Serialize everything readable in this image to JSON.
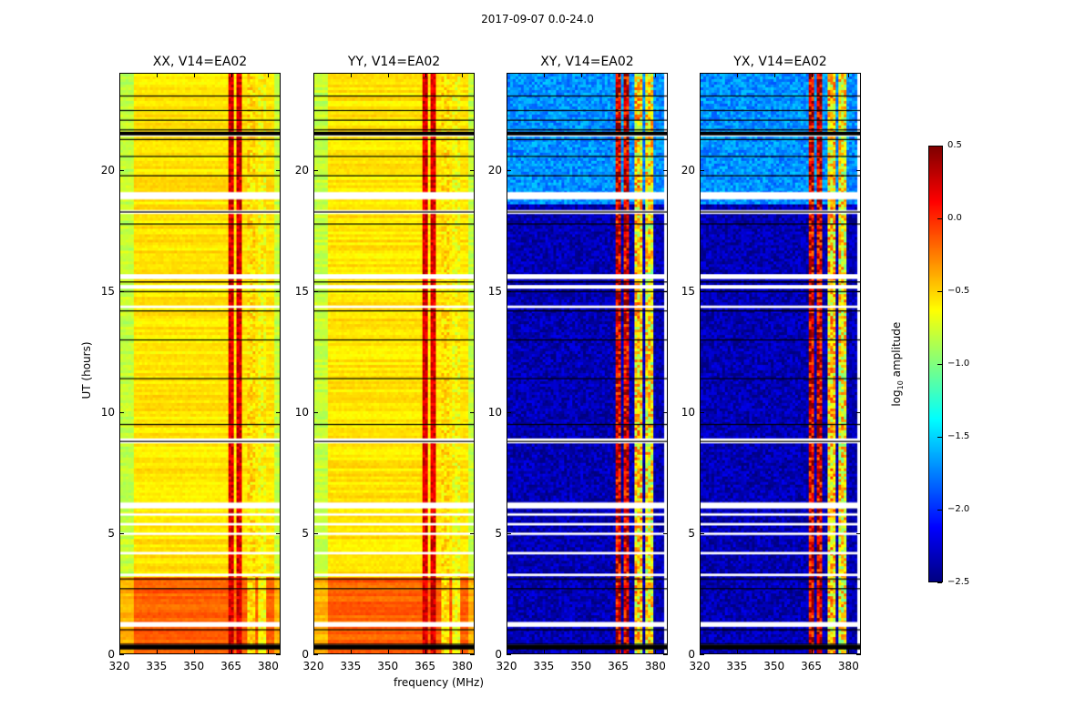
{
  "suptitle": "2017-09-07 0.0-24.0",
  "chart_data": {
    "type": "heatmap",
    "panels": [
      {
        "title": "XX, V14=EA02",
        "kind": "parallel"
      },
      {
        "title": "YY, V14=EA02",
        "kind": "parallel"
      },
      {
        "title": "XY, V14=EA02",
        "kind": "cross"
      },
      {
        "title": "YX, V14=EA02",
        "kind": "cross"
      }
    ],
    "xlabel": "frequency (MHz)",
    "ylabel": "UT (hours)",
    "xlim": [
      320,
      385
    ],
    "ylim": [
      0,
      24
    ],
    "xticks": [
      "320",
      "335",
      "350",
      "365",
      "380"
    ],
    "xtick_values": [
      320,
      335,
      350,
      365,
      380
    ],
    "yticks": [
      "0",
      "5",
      "10",
      "15",
      "20"
    ],
    "ytick_values": [
      0,
      5,
      10,
      15,
      20
    ],
    "colorbar": {
      "label": "log10 amplitude",
      "label_main": "log",
      "label_sub": "10",
      "label_rest": " amplitude",
      "range": [
        -2.5,
        0.5
      ],
      "ticks": [
        "0.5",
        "0.0",
        "−0.5",
        "−1.0",
        "−1.5",
        "−2.0",
        "−2.5"
      ],
      "tick_values": [
        0.5,
        0,
        -0.5,
        -1,
        -1.5,
        -2,
        -2.5
      ],
      "colormap": "jet"
    },
    "features": {
      "parallel_base": -0.55,
      "parallel_low_hours": [
        0,
        3.2
      ],
      "parallel_low_value": -0.15,
      "cross_base": -2.35,
      "cross_upper_hours": [
        18.6,
        24
      ],
      "cross_upper_value": -1.7,
      "bright_channels_mhz": [
        [
          363,
          366,
          0.15
        ],
        [
          366.5,
          369.5,
          0.15
        ],
        [
          371.5,
          375,
          -0.6
        ],
        [
          376,
          379,
          -0.7
        ]
      ],
      "flagged_hours": [
        [
          0.2,
          0.35
        ],
        [
          1.1,
          1.3
        ],
        [
          3.2,
          3.3
        ],
        [
          4.1,
          4.2
        ],
        [
          4.9,
          5.0
        ],
        [
          5.3,
          5.4
        ],
        [
          5.7,
          5.8
        ],
        [
          6.0,
          6.25
        ],
        [
          8.7,
          8.9
        ],
        [
          14.3,
          14.4
        ],
        [
          15.1,
          15.25
        ],
        [
          15.5,
          15.7
        ],
        [
          18.2,
          18.35
        ],
        [
          18.8,
          19.1
        ],
        [
          21.4,
          21.6
        ]
      ],
      "boundary_hours": [
        0.4,
        1.0,
        2.7,
        3.1,
        8.8,
        9.5,
        11.4,
        13.0,
        14.2,
        15.0,
        15.4,
        17.8,
        18.3,
        19.8,
        20.6,
        21.3,
        21.7,
        22.1,
        22.5,
        23.1
      ]
    }
  }
}
